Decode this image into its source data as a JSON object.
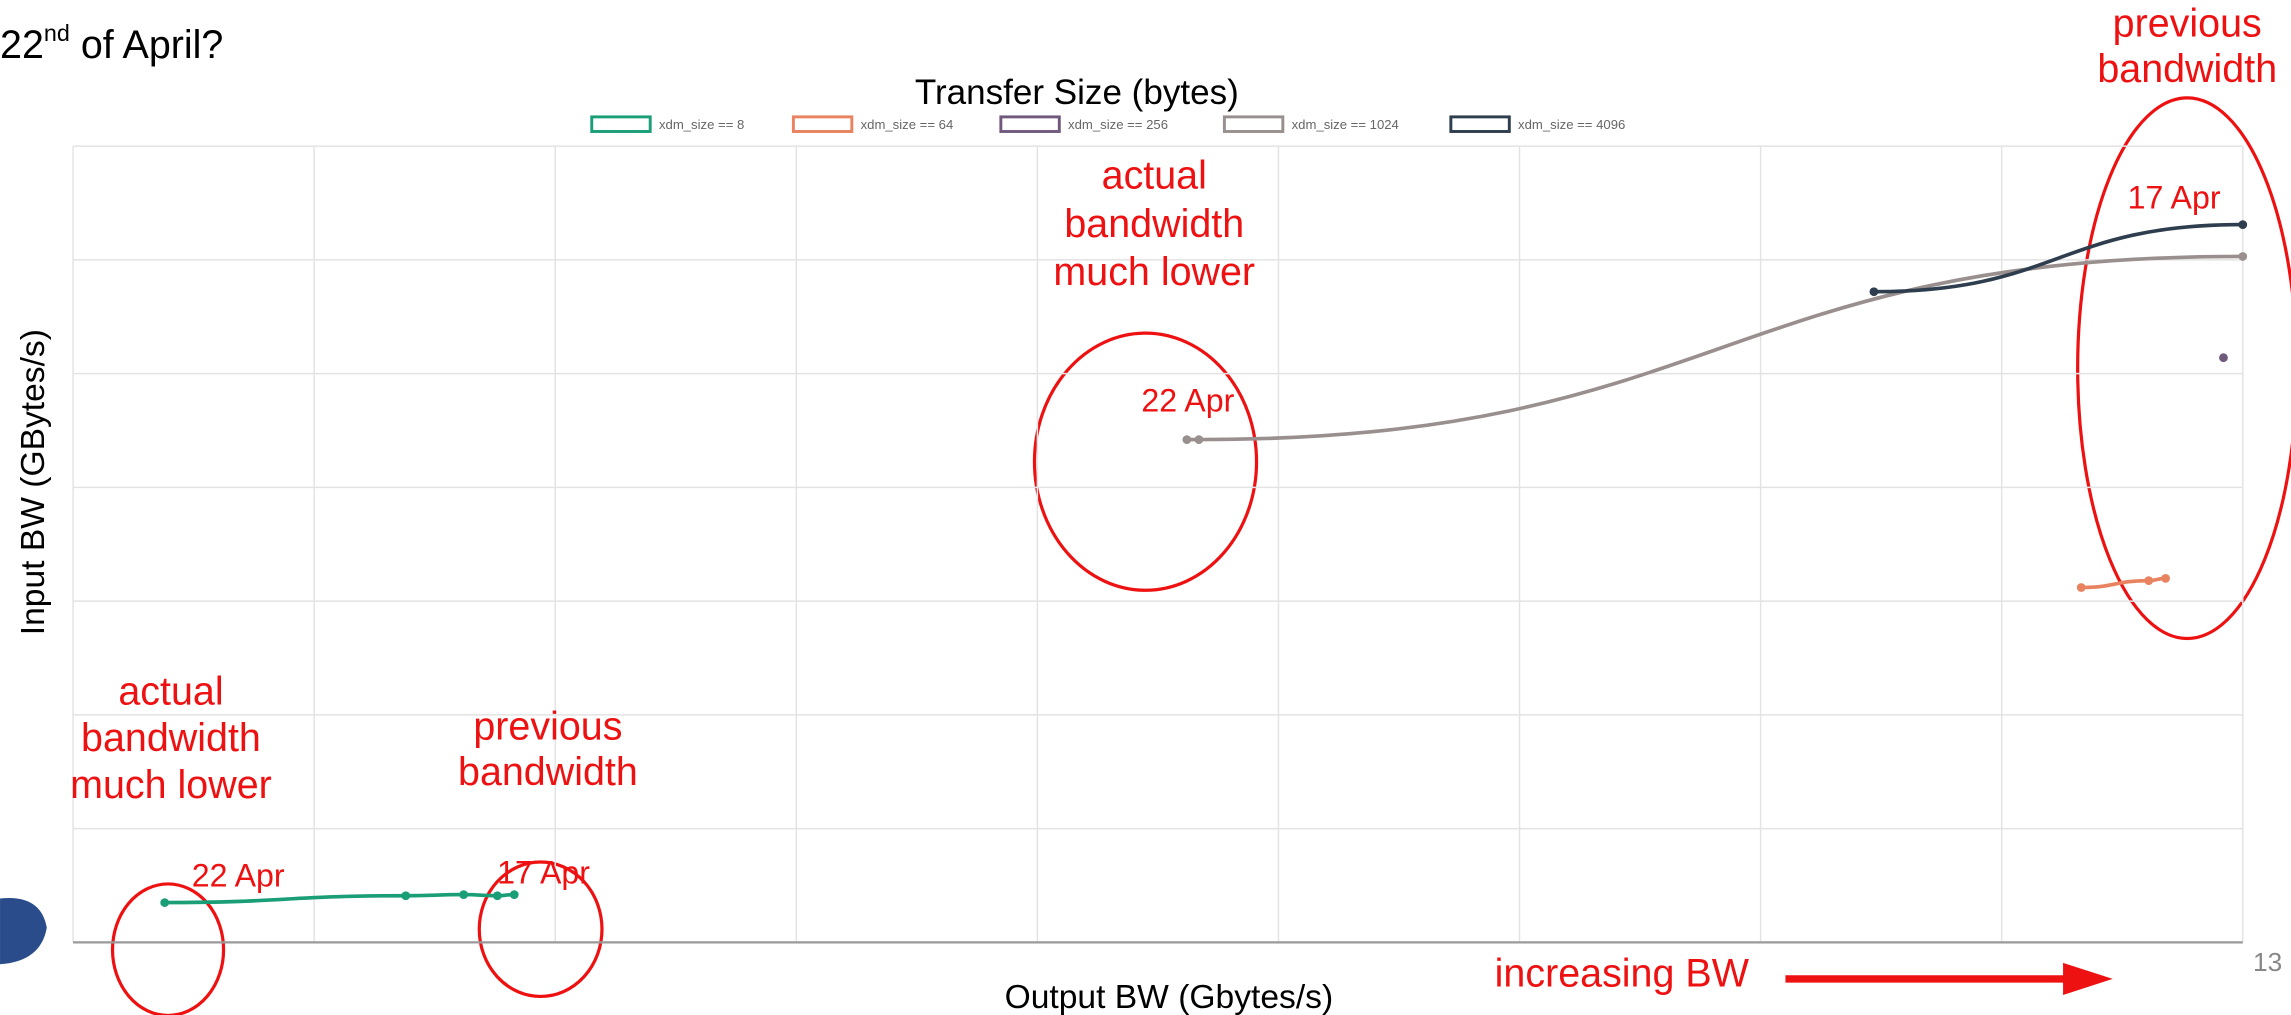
{
  "question": [
    "22",
    "nd",
    " of April?"
  ],
  "chart_data": {
    "type": "line",
    "title": "Transfer Size (bytes)",
    "x_label": "Output BW (Gbytes/s)",
    "y_label": "Input BW (GBytes/s)",
    "xlim": [
      0,
      9
    ],
    "ylim": [
      0,
      7
    ],
    "xticks": [
      0,
      1,
      2,
      3,
      4,
      5,
      6,
      7,
      8,
      9
    ],
    "yticks": [
      0,
      1,
      2,
      3,
      4,
      5,
      6,
      7
    ],
    "grid": true,
    "legend": "top",
    "series": [
      {
        "name": "xdm_size == 8",
        "color": "#1a9e77",
        "x": [
          0.38,
          1.38,
          1.62,
          1.76,
          1.83
        ],
        "values": [
          0.35,
          0.41,
          0.42,
          0.41,
          0.42
        ]
      },
      {
        "name": "xdm_size == 64",
        "color": "#e8825f",
        "x": [
          8.33,
          8.61,
          8.68
        ],
        "values": [
          3.12,
          3.18,
          3.2
        ]
      },
      {
        "name": "xdm_size == 256",
        "color": "#6f5a7e",
        "x": [
          8.92
        ],
        "values": [
          5.14
        ]
      },
      {
        "name": "xdm_size == 1024",
        "color": "#9a8f8f",
        "x": [
          4.62,
          4.67,
          9.0
        ],
        "values": [
          4.42,
          4.42,
          6.03
        ]
      },
      {
        "name": "xdm_size == 4096",
        "color": "#2f3e4e",
        "x": [
          7.47,
          9.0
        ],
        "values": [
          5.72,
          6.31
        ]
      }
    ],
    "annotations": [
      [
        "actual",
        "bandwidth",
        "much lower"
      ],
      [
        "previous",
        "bandwidth"
      ],
      [
        "22 Apr"
      ],
      [
        "17 Apr"
      ],
      [
        "actual",
        "bandwidth",
        "much lower"
      ],
      [
        "22 Apr"
      ],
      [
        "previous",
        "bandwidth"
      ],
      [
        "17 Apr"
      ],
      [
        "increasing BW"
      ]
    ]
  },
  "page_number": "13"
}
